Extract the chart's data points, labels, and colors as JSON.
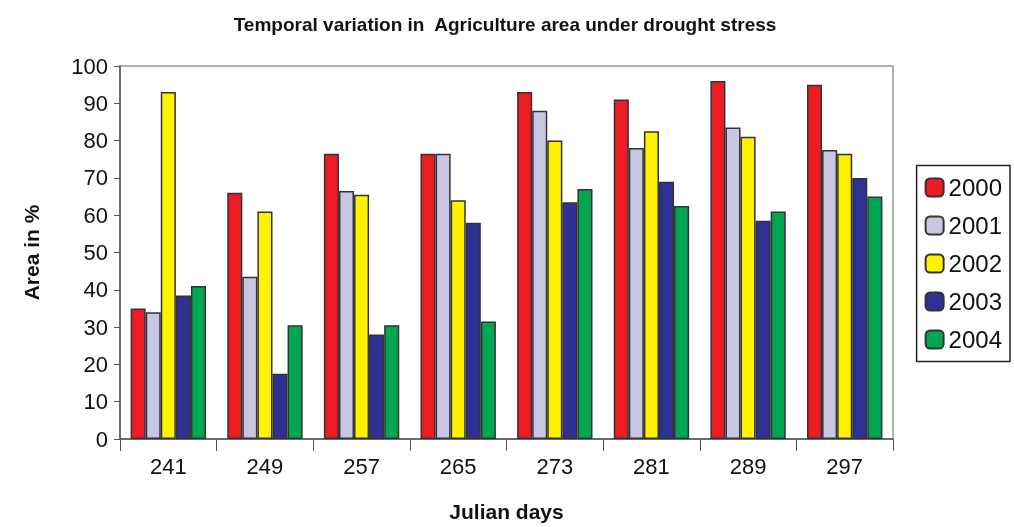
{
  "chart_data": {
    "type": "bar",
    "title": "Temporal variation in  Agriculture area under drought stress",
    "xlabel": "Julian days",
    "ylabel": "Area in %",
    "categories": [
      "241",
      "249",
      "257",
      "265",
      "273",
      "281",
      "289",
      "297"
    ],
    "series": [
      {
        "name": "2000",
        "color": "#ed1c24",
        "values": [
          35,
          66,
          76.5,
          76.5,
          93,
          91,
          96,
          95
        ]
      },
      {
        "name": "2001",
        "color": "#c8c6e2",
        "values": [
          34,
          43.5,
          66.5,
          76.5,
          88,
          78,
          83.5,
          77.5
        ]
      },
      {
        "name": "2002",
        "color": "#fff200",
        "values": [
          93,
          61,
          65.5,
          64,
          80,
          82.5,
          81,
          76.5
        ]
      },
      {
        "name": "2003",
        "color": "#2e3192",
        "values": [
          38.5,
          17.5,
          28,
          58,
          63.5,
          69,
          58.5,
          70
        ]
      },
      {
        "name": "2004",
        "color": "#00a651",
        "values": [
          41,
          30.5,
          30.5,
          31.5,
          67,
          62.5,
          61,
          65
        ]
      }
    ],
    "ylim": [
      0,
      100
    ],
    "yticks": [
      0,
      10,
      20,
      30,
      40,
      50,
      60,
      70,
      80,
      90,
      100
    ],
    "grid": false,
    "legend": "right"
  }
}
